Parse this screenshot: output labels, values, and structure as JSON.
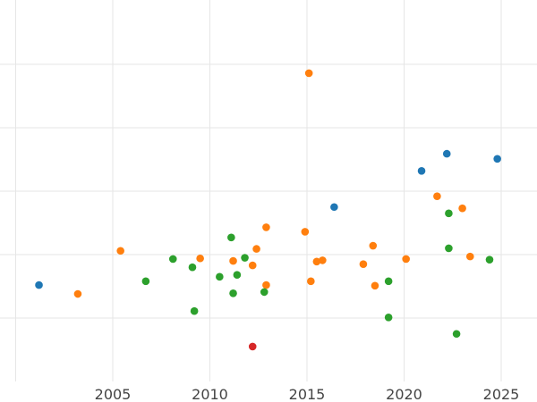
{
  "chart_data": {
    "type": "scatter",
    "title": "",
    "xlabel": "",
    "ylabel": "",
    "xlim": [
      2000.5,
      2026.5
    ],
    "x_ticks": [
      2005,
      2010,
      2015,
      2020,
      2025
    ],
    "x_tick_labels": [
      "2005",
      "2010",
      "2015",
      "2020",
      "2025"
    ],
    "ylim": [
      0,
      6
    ],
    "y_gridlines": [
      1,
      2,
      3,
      4,
      5
    ],
    "y_tick_labels": [],
    "grid": true,
    "legend": "none",
    "series": [
      {
        "color": "#1f77b4",
        "points": [
          {
            "x": 2001.2,
            "y": 1.52
          },
          {
            "x": 2016.4,
            "y": 2.75
          },
          {
            "x": 2020.9,
            "y": 3.32
          },
          {
            "x": 2022.2,
            "y": 3.59
          },
          {
            "x": 2024.8,
            "y": 3.51
          }
        ]
      },
      {
        "color": "#ff7f0e",
        "points": [
          {
            "x": 2003.2,
            "y": 1.38
          },
          {
            "x": 2005.4,
            "y": 2.06
          },
          {
            "x": 2009.5,
            "y": 1.94
          },
          {
            "x": 2011.2,
            "y": 1.9
          },
          {
            "x": 2012.2,
            "y": 1.83
          },
          {
            "x": 2012.4,
            "y": 2.09
          },
          {
            "x": 2012.9,
            "y": 2.43
          },
          {
            "x": 2012.9,
            "y": 1.52
          },
          {
            "x": 2014.9,
            "y": 2.36
          },
          {
            "x": 2015.1,
            "y": 4.86
          },
          {
            "x": 2015.2,
            "y": 1.58
          },
          {
            "x": 2015.5,
            "y": 1.89
          },
          {
            "x": 2015.8,
            "y": 1.91
          },
          {
            "x": 2017.9,
            "y": 1.85
          },
          {
            "x": 2018.4,
            "y": 2.14
          },
          {
            "x": 2018.5,
            "y": 1.51
          },
          {
            "x": 2020.1,
            "y": 1.93
          },
          {
            "x": 2021.7,
            "y": 2.92
          },
          {
            "x": 2023.0,
            "y": 2.73
          },
          {
            "x": 2023.4,
            "y": 1.97
          }
        ]
      },
      {
        "color": "#2ca02c",
        "points": [
          {
            "x": 2006.7,
            "y": 1.58
          },
          {
            "x": 2008.1,
            "y": 1.93
          },
          {
            "x": 2009.1,
            "y": 1.8
          },
          {
            "x": 2009.2,
            "y": 1.11
          },
          {
            "x": 2010.5,
            "y": 1.65
          },
          {
            "x": 2011.1,
            "y": 2.27
          },
          {
            "x": 2011.2,
            "y": 1.39
          },
          {
            "x": 2011.4,
            "y": 1.68
          },
          {
            "x": 2011.8,
            "y": 1.95
          },
          {
            "x": 2012.8,
            "y": 1.41
          },
          {
            "x": 2019.2,
            "y": 1.58
          },
          {
            "x": 2019.2,
            "y": 1.01
          },
          {
            "x": 2022.3,
            "y": 2.65
          },
          {
            "x": 2022.3,
            "y": 2.1
          },
          {
            "x": 2022.7,
            "y": 0.75
          },
          {
            "x": 2024.4,
            "y": 1.92
          }
        ]
      },
      {
        "color": "#d62728",
        "points": [
          {
            "x": 2012.2,
            "y": 0.55
          }
        ]
      }
    ]
  }
}
